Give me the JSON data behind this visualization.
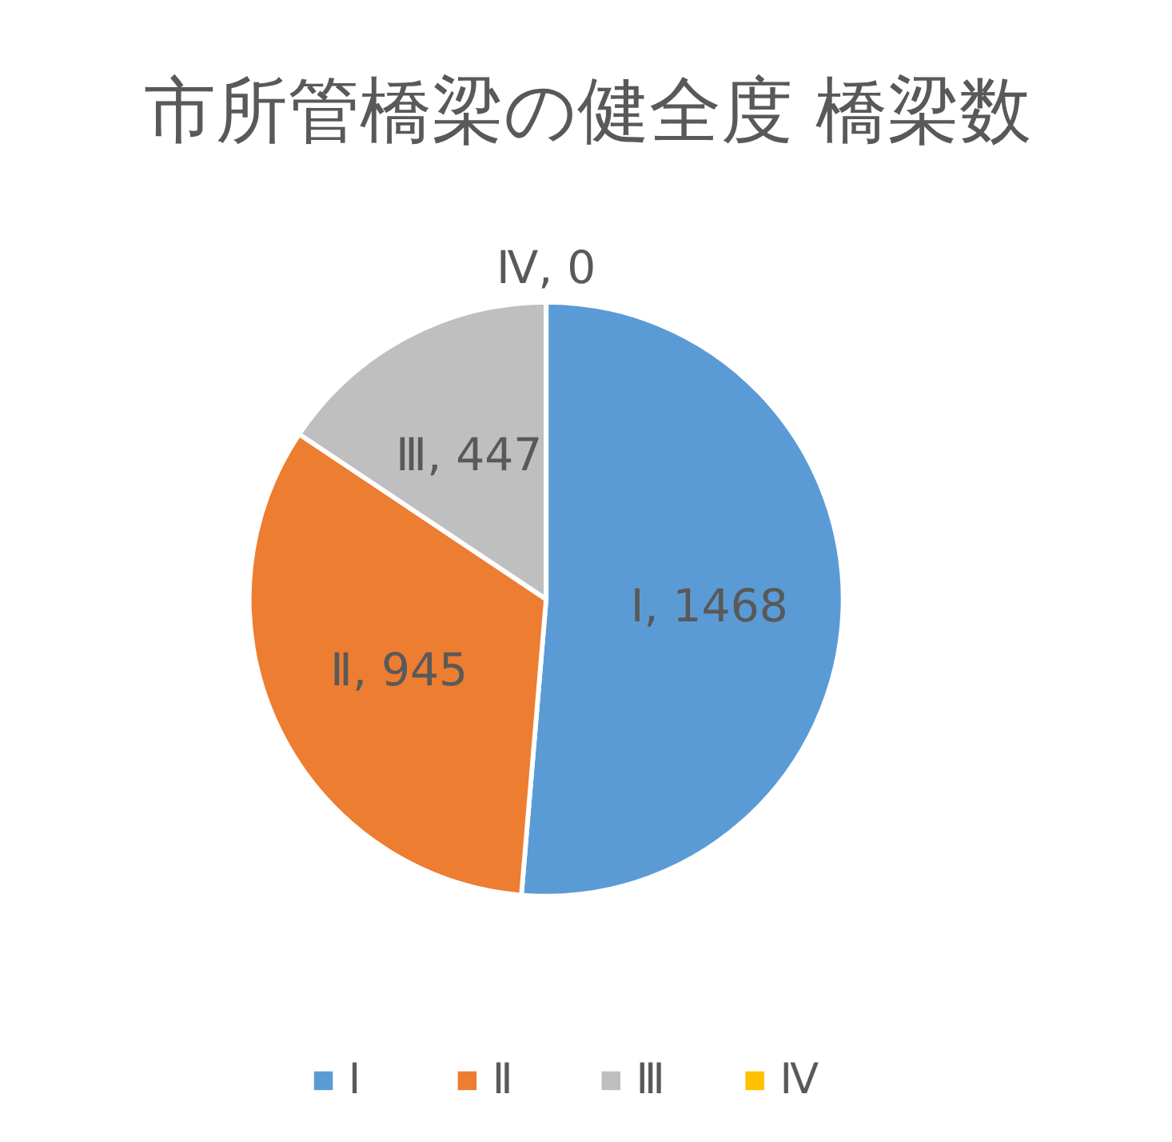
{
  "chart_data": {
    "type": "pie",
    "title": "市所管橋梁の健全度 橋梁数",
    "categories": [
      "Ⅰ",
      "Ⅱ",
      "Ⅲ",
      "Ⅳ"
    ],
    "values": [
      1468,
      945,
      447,
      0
    ],
    "colors": [
      "#5b9bd5",
      "#ed7d31",
      "#bfbfbf",
      "#ffc000"
    ],
    "value_labels": [
      "Ⅰ, 1468",
      "Ⅱ, 945",
      "Ⅲ, 447",
      "Ⅳ, 0"
    ],
    "legend": "bottom"
  }
}
